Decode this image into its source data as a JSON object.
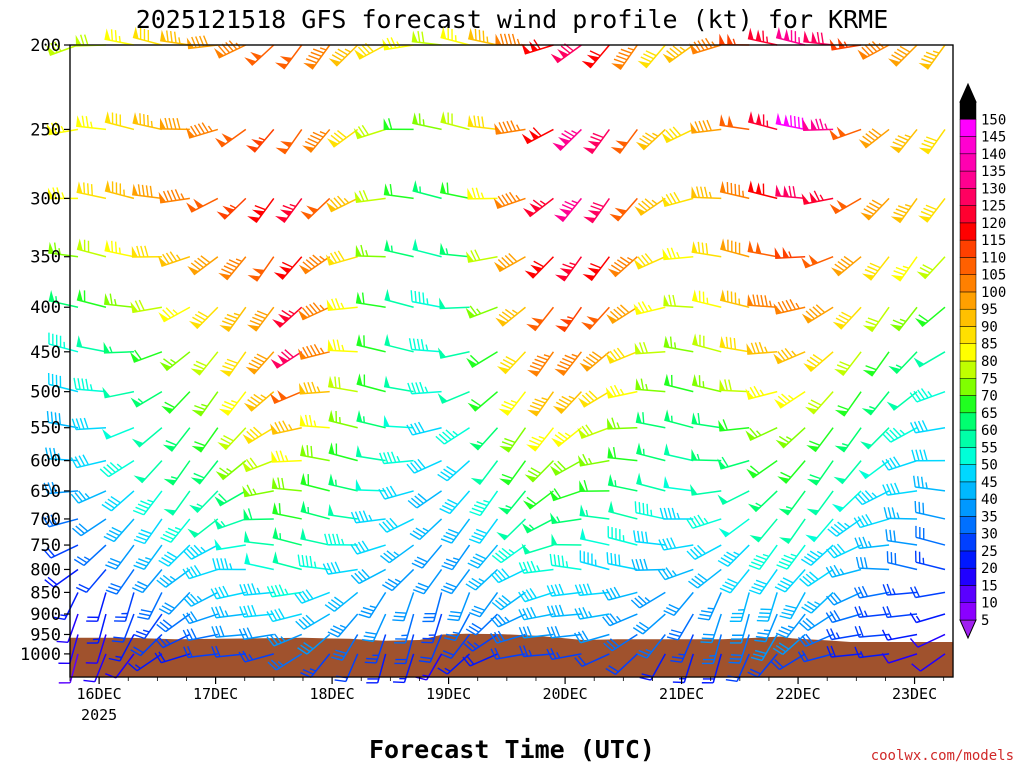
{
  "chart_data": {
    "type": "wind-profile",
    "title": "2025121518 GFS forecast wind profile (kt) for KRME",
    "xlabel": "Forecast Time (UTC)",
    "ylabel_units": "hPa",
    "y_levels": [
      200,
      250,
      300,
      350,
      400,
      450,
      500,
      550,
      600,
      650,
      700,
      750,
      800,
      850,
      900,
      950,
      1000
    ],
    "x_ticks": [
      {
        "label": "16DEC",
        "day": 0.25
      },
      {
        "label": "17DEC",
        "day": 1.25
      },
      {
        "label": "18DEC",
        "day": 2.25
      },
      {
        "label": "19DEC",
        "day": 3.25
      },
      {
        "label": "20DEC",
        "day": 4.25
      },
      {
        "label": "21DEC",
        "day": 5.25
      },
      {
        "label": "22DEC",
        "day": 6.25
      },
      {
        "label": "23DEC",
        "day": 7.25
      }
    ],
    "x_year_label": "2025",
    "colorbar": {
      "units": "kt",
      "levels": [
        5,
        10,
        15,
        20,
        25,
        30,
        35,
        40,
        45,
        50,
        55,
        60,
        65,
        70,
        75,
        80,
        85,
        90,
        95,
        100,
        105,
        110,
        115,
        120,
        125,
        130,
        135,
        140,
        145,
        150
      ],
      "colors": [
        "#8a00ff",
        "#5a00ff",
        "#2000ff",
        "#0018ff",
        "#0040ff",
        "#0070ff",
        "#0098ff",
        "#00b8ff",
        "#00d8ff",
        "#00ffd8",
        "#00ffa8",
        "#00ff70",
        "#20ff20",
        "#80ff00",
        "#c0ff00",
        "#ffff00",
        "#ffe000",
        "#ffc000",
        "#ffa000",
        "#ff8000",
        "#ff6000",
        "#ff4000",
        "#ff0000",
        "#ff0030",
        "#ff0060",
        "#ff0090",
        "#ff00b0",
        "#ff00d0",
        "#ff00ff",
        "#000000"
      ]
    },
    "time_step_hours": 6,
    "time_steps": 32,
    "wind_speed_kt_by_level": {
      "200": [
        70,
        70,
        75,
        80,
        85,
        90,
        95,
        100,
        100,
        95,
        85,
        80,
        75,
        70,
        75,
        85,
        95,
        110,
        120,
        110,
        95,
        80,
        85,
        95,
        105,
        115,
        125,
        120,
        105,
        95,
        90,
        85
      ],
      "250": [
        75,
        75,
        80,
        85,
        90,
        95,
        100,
        105,
        100,
        95,
        80,
        70,
        60,
        65,
        70,
        80,
        95,
        110,
        125,
        120,
        100,
        85,
        80,
        90,
        100,
        115,
        140,
        125,
        100,
        90,
        85,
        80
      ],
      "300": [
        75,
        80,
        85,
        90,
        95,
        100,
        105,
        110,
        115,
        100,
        85,
        70,
        60,
        55,
        60,
        75,
        95,
        115,
        125,
        120,
        100,
        85,
        80,
        85,
        95,
        110,
        120,
        115,
        100,
        90,
        85,
        80
      ],
      "350": [
        65,
        70,
        75,
        80,
        85,
        90,
        95,
        100,
        110,
        95,
        80,
        65,
        55,
        50,
        55,
        70,
        90,
        110,
        115,
        110,
        95,
        80,
        75,
        80,
        90,
        100,
        105,
        100,
        90,
        80,
        75,
        70
      ],
      "400": [
        55,
        60,
        65,
        70,
        75,
        80,
        85,
        90,
        115,
        95,
        75,
        60,
        50,
        45,
        50,
        65,
        85,
        100,
        105,
        100,
        90,
        75,
        70,
        75,
        85,
        95,
        95,
        90,
        80,
        70,
        65,
        60
      ],
      "450": [
        45,
        50,
        55,
        60,
        65,
        70,
        80,
        90,
        120,
        95,
        75,
        60,
        50,
        45,
        50,
        60,
        80,
        95,
        95,
        90,
        80,
        70,
        65,
        70,
        80,
        85,
        85,
        80,
        70,
        60,
        55,
        50
      ],
      "500": [
        40,
        45,
        50,
        55,
        60,
        65,
        75,
        85,
        100,
        85,
        70,
        60,
        50,
        45,
        50,
        60,
        75,
        85,
        85,
        80,
        75,
        65,
        60,
        65,
        70,
        75,
        75,
        70,
        60,
        55,
        50,
        45
      ],
      "550": [
        38,
        42,
        48,
        52,
        58,
        62,
        70,
        80,
        85,
        75,
        65,
        55,
        48,
        42,
        45,
        55,
        68,
        75,
        75,
        70,
        65,
        58,
        55,
        58,
        62,
        65,
        65,
        62,
        55,
        50,
        45,
        42
      ],
      "600": [
        35,
        40,
        45,
        50,
        55,
        58,
        65,
        72,
        75,
        68,
        60,
        52,
        45,
        40,
        42,
        50,
        62,
        68,
        68,
        65,
        60,
        55,
        52,
        55,
        58,
        60,
        60,
        58,
        52,
        48,
        42,
        40
      ],
      "650": [
        32,
        36,
        42,
        46,
        50,
        54,
        58,
        65,
        68,
        62,
        55,
        48,
        42,
        38,
        40,
        46,
        55,
        62,
        62,
        60,
        55,
        50,
        48,
        50,
        52,
        55,
        55,
        52,
        48,
        44,
        40,
        36
      ],
      "700": [
        28,
        32,
        38,
        42,
        46,
        50,
        54,
        58,
        62,
        56,
        50,
        44,
        40,
        36,
        38,
        42,
        50,
        56,
        56,
        54,
        50,
        46,
        44,
        46,
        48,
        50,
        50,
        48,
        44,
        40,
        36,
        32
      ],
      "750": [
        22,
        26,
        32,
        36,
        40,
        44,
        48,
        52,
        55,
        50,
        45,
        40,
        36,
        32,
        34,
        38,
        45,
        50,
        50,
        48,
        45,
        42,
        40,
        42,
        44,
        45,
        45,
        44,
        40,
        36,
        32,
        28
      ],
      "800": [
        18,
        22,
        28,
        32,
        36,
        40,
        44,
        48,
        50,
        46,
        42,
        38,
        34,
        30,
        32,
        36,
        42,
        46,
        46,
        44,
        42,
        38,
        36,
        38,
        40,
        42,
        42,
        40,
        36,
        32,
        28,
        24
      ],
      "850": [
        15,
        18,
        24,
        28,
        32,
        36,
        40,
        44,
        45,
        42,
        38,
        34,
        30,
        28,
        30,
        32,
        38,
        42,
        42,
        40,
        38,
        34,
        32,
        34,
        36,
        38,
        38,
        36,
        32,
        28,
        24,
        20
      ],
      "900": [
        12,
        15,
        20,
        24,
        28,
        32,
        36,
        40,
        40,
        38,
        34,
        30,
        26,
        24,
        26,
        28,
        34,
        38,
        38,
        36,
        34,
        30,
        28,
        30,
        32,
        34,
        34,
        32,
        28,
        24,
        20,
        16
      ],
      "950": [
        10,
        12,
        16,
        20,
        24,
        28,
        30,
        32,
        34,
        32,
        28,
        24,
        22,
        20,
        22,
        24,
        28,
        32,
        32,
        30,
        28,
        26,
        24,
        26,
        28,
        30,
        30,
        28,
        24,
        20,
        16,
        12
      ],
      "1000": [
        8,
        10,
        12,
        15,
        18,
        20,
        22,
        24,
        25,
        24,
        20,
        18,
        16,
        14,
        16,
        18,
        22,
        24,
        24,
        22,
        20,
        18,
        16,
        18,
        20,
        22,
        22,
        20,
        18,
        15,
        12,
        10
      ]
    },
    "terrain": {
      "description": "surface/terrain shading near 950-1000 hPa"
    },
    "credit": "coolwx.com/models"
  },
  "text": {
    "title": "2025121518 GFS forecast wind profile (kt) for KRME",
    "xlabel": "Forecast Time (UTC)",
    "year": "2025",
    "credit": "coolwx.com/models"
  }
}
